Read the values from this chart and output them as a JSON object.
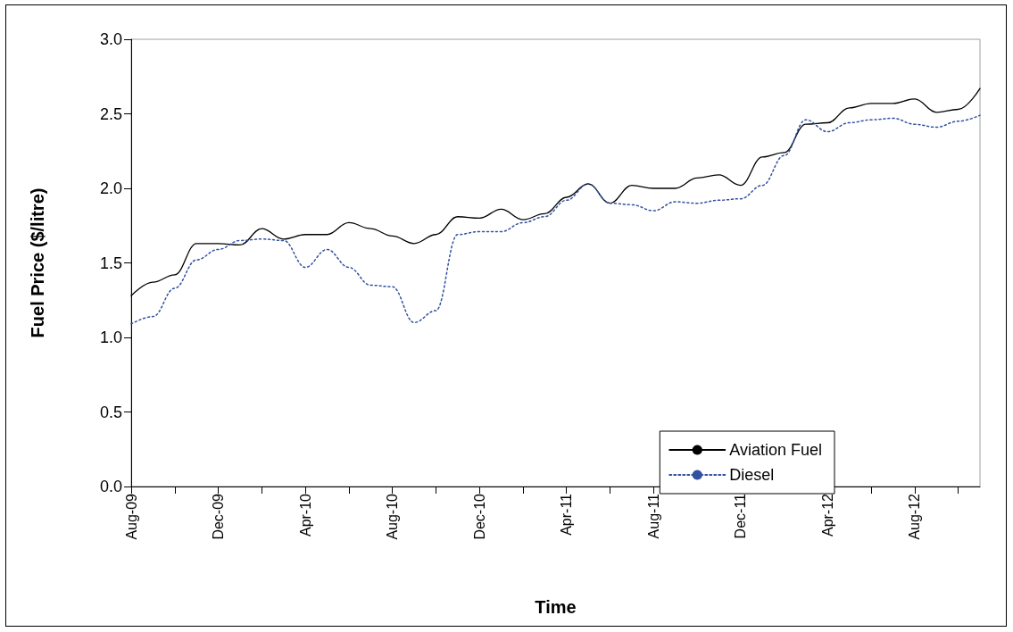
{
  "chart_data": {
    "type": "line",
    "xlabel": "Time",
    "ylabel": "Fuel Price ($/litre)",
    "categories": [
      "Aug-09",
      null,
      null,
      null,
      "Dec-09",
      null,
      null,
      null,
      "Apr-10",
      null,
      null,
      null,
      "Aug-10",
      null,
      null,
      null,
      "Dec-10",
      null,
      null,
      null,
      "Apr-11",
      null,
      null,
      null,
      "Aug-11",
      null,
      null,
      null,
      "Dec-11",
      null,
      null,
      null,
      "Apr-12",
      null,
      null,
      null,
      "Aug-12",
      null,
      null,
      null
    ],
    "series": [
      {
        "name": "Aviation Fuel",
        "color": "#000000",
        "line_style": "solid",
        "values": [
          1.28,
          1.37,
          1.42,
          1.63,
          1.63,
          1.62,
          1.73,
          1.66,
          1.69,
          1.69,
          1.77,
          1.73,
          1.68,
          1.63,
          1.69,
          1.81,
          1.8,
          1.86,
          1.79,
          1.83,
          1.94,
          2.03,
          1.9,
          2.02,
          2.0,
          2.0,
          2.07,
          2.09,
          2.02,
          2.21,
          2.24,
          2.43,
          2.44,
          2.54,
          2.57,
          2.57,
          2.6,
          2.51,
          2.53,
          2.67
        ]
      },
      {
        "name": "Diesel",
        "color": "#3050a0",
        "line_style": "dotted",
        "values": [
          1.09,
          1.14,
          1.33,
          1.52,
          1.59,
          1.65,
          1.66,
          1.65,
          1.47,
          1.59,
          1.47,
          1.35,
          1.34,
          1.1,
          1.18,
          1.69,
          1.71,
          1.71,
          1.77,
          1.81,
          1.92,
          2.03,
          1.9,
          1.89,
          1.85,
          1.91,
          1.9,
          1.92,
          1.93,
          2.02,
          2.22,
          2.46,
          2.38,
          2.44,
          2.46,
          2.47,
          2.43,
          2.41,
          2.45,
          2.49
        ]
      }
    ],
    "ylim": [
      0,
      3
    ],
    "yticks": [
      {
        "value": 0,
        "label": "0.0"
      },
      0.5,
      {
        "value": 1,
        "label": "1.0"
      },
      1.5,
      {
        "value": 2,
        "label": "2.0"
      },
      2.5,
      {
        "value": 3,
        "label": "3.0"
      }
    ],
    "grid": false,
    "legend": "right",
    "marker": "none"
  }
}
